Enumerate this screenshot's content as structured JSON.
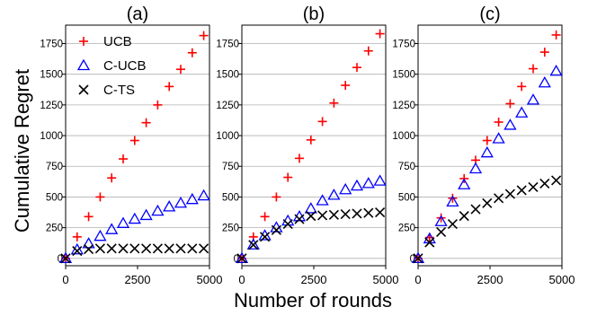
{
  "figure": {
    "ylabel": "Cumulative Regret",
    "xlabel": "Number of rounds"
  },
  "legend": {
    "placement": "top-left of panel (a)",
    "entries": [
      {
        "label": "UCB",
        "marker": "plus",
        "color": "#ff0000"
      },
      {
        "label": "C-UCB",
        "marker": "triangle",
        "color": "#0000ff"
      },
      {
        "label": "C-TS",
        "marker": "x",
        "color": "#000000"
      }
    ]
  },
  "chart_data": [
    {
      "type": "scatter",
      "title": "(a)",
      "xlim": [
        0,
        5000
      ],
      "ylim": [
        -60,
        1900
      ],
      "xticks": [
        0,
        2500,
        5000
      ],
      "yticks": [
        0,
        250,
        500,
        750,
        1000,
        1250,
        1500,
        1750
      ],
      "grid": "horizontal",
      "x": [
        0,
        400,
        800,
        1200,
        1600,
        2000,
        2400,
        2800,
        3200,
        3600,
        4000,
        4400,
        4800
      ],
      "series": [
        {
          "name": "UCB",
          "values": [
            0,
            175,
            340,
            500,
            655,
            810,
            960,
            1105,
            1250,
            1400,
            1540,
            1675,
            1815
          ]
        },
        {
          "name": "C-UCB",
          "values": [
            0,
            70,
            120,
            180,
            235,
            285,
            320,
            350,
            385,
            420,
            450,
            480,
            510
          ]
        },
        {
          "name": "C-TS",
          "values": [
            0,
            60,
            75,
            80,
            80,
            80,
            80,
            80,
            80,
            80,
            80,
            80,
            80
          ]
        }
      ]
    },
    {
      "type": "scatter",
      "title": "(b)",
      "xlim": [
        0,
        5000
      ],
      "ylim": [
        -60,
        1900
      ],
      "xticks": [
        0,
        2500,
        5000
      ],
      "yticks": [
        0,
        250,
        500,
        750,
        1000,
        1250,
        1500,
        1750
      ],
      "grid": "horizontal",
      "x": [
        0,
        400,
        800,
        1200,
        1600,
        2000,
        2400,
        2800,
        3200,
        3600,
        4000,
        4400,
        4800
      ],
      "series": [
        {
          "name": "UCB",
          "values": [
            0,
            175,
            340,
            500,
            660,
            815,
            965,
            1115,
            1265,
            1410,
            1555,
            1690,
            1830
          ]
        },
        {
          "name": "C-UCB",
          "values": [
            0,
            110,
            185,
            250,
            305,
            340,
            405,
            470,
            515,
            560,
            590,
            610,
            630
          ]
        },
        {
          "name": "C-TS",
          "values": [
            0,
            110,
            175,
            230,
            280,
            320,
            345,
            350,
            355,
            360,
            365,
            370,
            375
          ]
        }
      ]
    },
    {
      "type": "scatter",
      "title": "(c)",
      "xlim": [
        0,
        5000
      ],
      "ylim": [
        -60,
        1900
      ],
      "xticks": [
        0,
        2500,
        5000
      ],
      "yticks": [
        0,
        250,
        500,
        750,
        1000,
        1250,
        1500,
        1750
      ],
      "grid": "horizontal",
      "x": [
        0,
        400,
        800,
        1200,
        1600,
        2000,
        2400,
        2800,
        3200,
        3600,
        4000,
        4400,
        4800
      ],
      "series": [
        {
          "name": "UCB",
          "values": [
            0,
            170,
            330,
            490,
            650,
            800,
            960,
            1110,
            1260,
            1400,
            1545,
            1680,
            1820
          ]
        },
        {
          "name": "C-UCB",
          "values": [
            0,
            160,
            300,
            460,
            600,
            730,
            860,
            975,
            1085,
            1185,
            1290,
            1430,
            1525
          ]
        },
        {
          "name": "C-TS",
          "values": [
            0,
            130,
            215,
            280,
            345,
            400,
            450,
            490,
            525,
            555,
            580,
            610,
            635
          ]
        }
      ]
    }
  ]
}
